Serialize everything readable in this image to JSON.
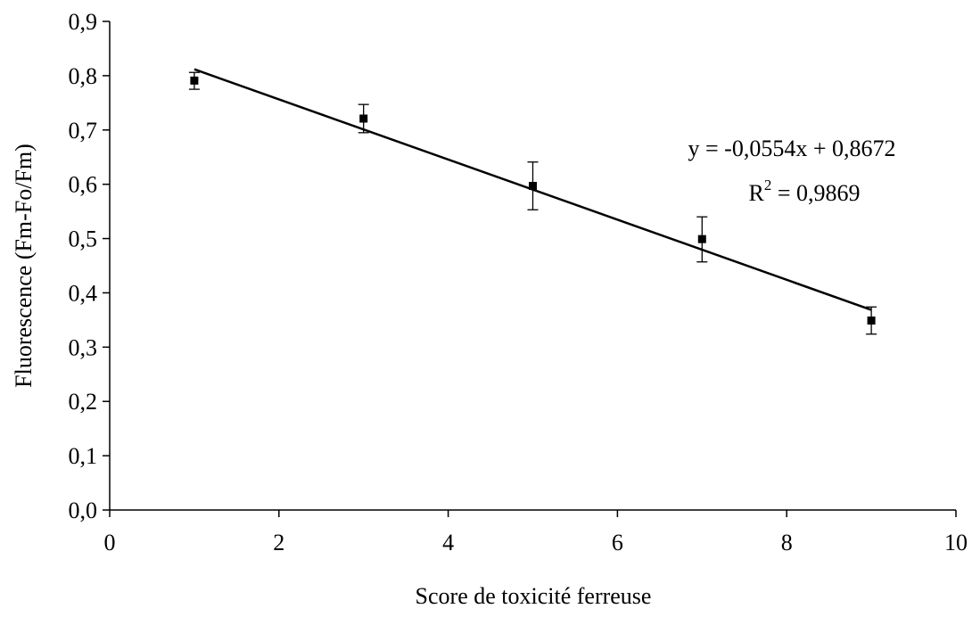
{
  "chart_data": {
    "type": "scatter",
    "xlabel": "Score de toxicité ferreuse",
    "ylabel": "Fluorescence (Fm-Fo/Fm)",
    "xlim": [
      0,
      10
    ],
    "ylim": [
      0,
      0.9
    ],
    "x_ticks": [
      0,
      2,
      4,
      6,
      8,
      10
    ],
    "x_tick_labels": [
      "0",
      "2",
      "4",
      "6",
      "8",
      "10"
    ],
    "y_ticks": [
      0,
      0.1,
      0.2,
      0.3,
      0.4,
      0.5,
      0.6,
      0.7,
      0.8,
      0.9
    ],
    "y_tick_labels": [
      "0,0",
      "0,1",
      "0,2",
      "0,3",
      "0,4",
      "0,5",
      "0,6",
      "0,7",
      "0,8",
      "0,9"
    ],
    "grid": false,
    "marker": "square",
    "color": "#000000",
    "points": [
      {
        "x": 1,
        "y": 0.791,
        "err_low": 0.775,
        "err_high": 0.806
      },
      {
        "x": 3,
        "y": 0.721,
        "err_low": 0.695,
        "err_high": 0.747
      },
      {
        "x": 5,
        "y": 0.597,
        "err_low": 0.553,
        "err_high": 0.641
      },
      {
        "x": 7,
        "y": 0.499,
        "err_low": 0.457,
        "err_high": 0.54
      },
      {
        "x": 9,
        "y": 0.349,
        "err_low": 0.324,
        "err_high": 0.374
      }
    ],
    "trendline": {
      "slope": -0.0554,
      "intercept": 0.8672,
      "x_start": 1,
      "x_end": 9
    },
    "equation_label": "y = -0,0554x + 0,8672",
    "r2_prefix": "R",
    "r2_exponent": "2",
    "r2_value": " = 0,9869"
  }
}
